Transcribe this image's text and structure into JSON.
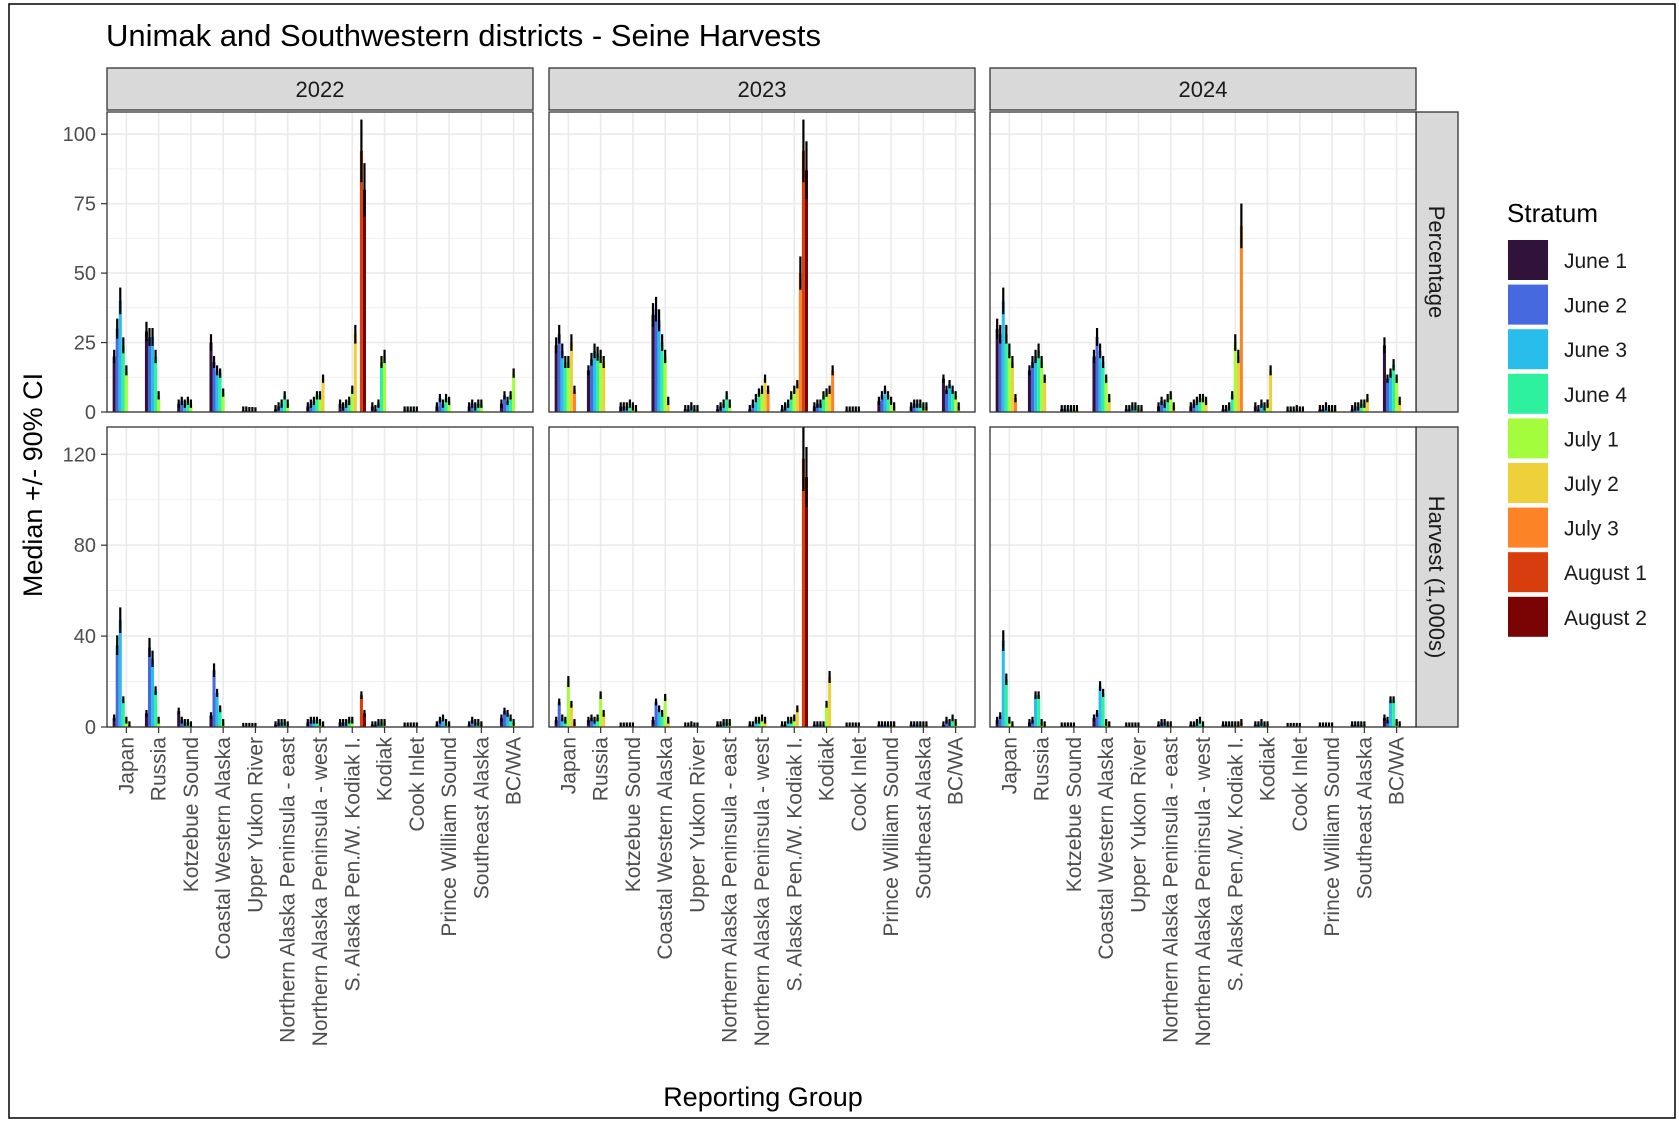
{
  "chart_data": {
    "type": "bar",
    "title": "Unimak and Southwestern districts - Seine Harvests",
    "xlabel": "Reporting Group",
    "ylabel": "Median +/- 90% CI",
    "facet_columns": [
      "2022",
      "2023",
      "2024"
    ],
    "facet_rows": [
      {
        "label": "Percentage",
        "ylim": [
          0,
          108
        ],
        "yticks": [
          0,
          25,
          50,
          75,
          100
        ]
      },
      {
        "label": "Harvest (1,000s)",
        "ylim": [
          0,
          132
        ],
        "yticks": [
          0,
          40,
          80,
          120
        ]
      }
    ],
    "categories": [
      "Japan",
      "Russia",
      "Kotzebue Sound",
      "Coastal Western Alaska",
      "Upper Yukon River",
      "Northern Alaska Peninsula - east",
      "Northern Alaska Peninsula - west",
      "S. Alaska Pen./W. Kodiak I.",
      "Kodiak",
      "Cook Inlet",
      "Prince William Sound",
      "Southeast Alaska",
      "BC/WA"
    ],
    "legend": {
      "title": "Stratum",
      "placement": "right",
      "items": [
        {
          "name": "June 1",
          "color": "#30123B"
        },
        {
          "name": "June 2",
          "color": "#4669E0"
        },
        {
          "name": "June 3",
          "color": "#29BDEB"
        },
        {
          "name": "June 4",
          "color": "#2EF19F"
        },
        {
          "name": "July 1",
          "color": "#A3FD3C"
        },
        {
          "name": "July 2",
          "color": "#EDD03A"
        },
        {
          "name": "July 3",
          "color": "#FC8427"
        },
        {
          "name": "August 1",
          "color": "#D83D0E"
        },
        {
          "name": "August 2",
          "color": "#7A0403"
        }
      ]
    },
    "grid": true,
    "error_bars": "90% CI",
    "panels": [
      {
        "year": "2022",
        "measure": "Percentage",
        "strata": [
          "June 1",
          "June 2",
          "June 3",
          "June 4",
          "July 1",
          "July 2",
          "July 3",
          "August 1",
          "August 2"
        ],
        "values": [
          [
            20,
            30,
            40,
            24,
            15,
            0,
            0,
            0,
            0
          ],
          [
            29,
            27,
            27,
            20,
            6,
            0,
            0,
            0,
            0
          ],
          [
            3,
            4,
            3,
            4,
            3,
            0,
            0,
            0,
            0
          ],
          [
            25,
            18,
            15,
            14,
            7,
            0,
            0,
            0,
            0
          ],
          [
            0.5,
            0.5,
            0.3,
            0.3,
            0.2,
            0,
            0,
            0,
            0
          ],
          [
            1,
            2,
            3,
            6,
            3,
            0,
            0,
            0,
            0
          ],
          [
            2,
            3,
            4,
            6,
            6,
            12,
            0,
            0,
            0
          ],
          [
            3,
            2,
            3,
            4,
            8,
            28,
            0,
            94,
            80
          ],
          [
            2,
            1,
            3,
            18,
            20,
            0,
            0,
            0,
            0
          ],
          [
            0.5,
            0.5,
            0.5,
            0.5,
            0.5,
            0,
            0,
            0,
            0
          ],
          [
            2,
            5,
            3,
            5,
            4,
            0,
            0,
            0,
            0
          ],
          [
            2,
            3,
            2,
            3,
            3,
            0,
            0,
            0,
            0
          ],
          [
            3,
            6,
            4,
            6,
            14,
            0,
            0,
            0,
            0
          ]
        ]
      },
      {
        "year": "2023",
        "measure": "Percentage",
        "strata": [
          "June 1",
          "June 2",
          "June 3",
          "June 4",
          "July 1",
          "July 2",
          "July 3",
          "August 1",
          "August 2"
        ],
        "values": [
          [
            24,
            28,
            22,
            18,
            18,
            25,
            8,
            0,
            0
          ],
          [
            15,
            19,
            22,
            21,
            20,
            18,
            0,
            0,
            0
          ],
          [
            2,
            2,
            2,
            3,
            2,
            1,
            0,
            0,
            0
          ],
          [
            35,
            37,
            33,
            25,
            20,
            4,
            0,
            0,
            0
          ],
          [
            1,
            1,
            2,
            1,
            1,
            0,
            0,
            0,
            0
          ],
          [
            1,
            2,
            3,
            6,
            3,
            0,
            0,
            0,
            0
          ],
          [
            1,
            3,
            5,
            7,
            8,
            12,
            8,
            0,
            0
          ],
          [
            1,
            2,
            3,
            6,
            8,
            10,
            50,
            94,
            87
          ],
          [
            2,
            3,
            3,
            6,
            7,
            8,
            15,
            0,
            0
          ],
          [
            0.5,
            0.5,
            0.5,
            0.5,
            0.5,
            0,
            0,
            0,
            0
          ],
          [
            4,
            6,
            8,
            6,
            4,
            2,
            0,
            0,
            0
          ],
          [
            2,
            3,
            3,
            3,
            2,
            2,
            0,
            0,
            0
          ],
          [
            12,
            8,
            10,
            8,
            6,
            2,
            0,
            0,
            0
          ]
        ]
      },
      {
        "year": "2024",
        "measure": "Percentage",
        "strata": [
          "June 1",
          "June 2",
          "June 3",
          "June 4",
          "July 1",
          "July 2",
          "July 3",
          "August 1",
          "August 2"
        ],
        "values": [
          [
            30,
            28,
            40,
            28,
            22,
            18,
            5,
            0,
            0
          ],
          [
            15,
            18,
            20,
            22,
            18,
            12,
            0,
            0,
            0
          ],
          [
            1,
            1,
            1,
            1,
            1,
            1,
            0,
            0,
            0
          ],
          [
            20,
            27,
            22,
            18,
            12,
            5,
            0,
            0,
            0
          ],
          [
            1,
            1,
            2,
            2,
            1,
            1,
            0,
            0,
            0
          ],
          [
            2,
            4,
            3,
            5,
            6,
            2,
            0,
            0,
            0
          ],
          [
            2,
            3,
            4,
            5,
            5,
            4,
            0,
            0,
            0
          ],
          [
            1,
            1,
            2,
            6,
            25,
            20,
            67,
            0,
            0
          ],
          [
            2,
            1,
            3,
            2,
            3,
            15,
            0,
            0,
            0
          ],
          [
            0.5,
            0.5,
            0.5,
            1,
            0.5,
            0.5,
            0,
            0,
            0
          ],
          [
            1,
            1,
            2,
            1,
            1,
            1,
            0,
            0,
            0
          ],
          [
            1,
            2,
            2,
            3,
            3,
            5,
            0,
            0,
            0
          ],
          [
            24,
            12,
            14,
            17,
            12,
            4,
            0,
            0,
            0
          ]
        ]
      },
      {
        "year": "2022",
        "measure": "Harvest (1,000s)",
        "strata": [
          "June 1",
          "June 2",
          "June 3",
          "June 4",
          "July 1",
          "July 2",
          "July 3",
          "August 1",
          "August 2"
        ],
        "values": [
          [
            4,
            36,
            47,
            12,
            3,
            1,
            0,
            0,
            0
          ],
          [
            6,
            35,
            30,
            16,
            3,
            0,
            0,
            0,
            0
          ],
          [
            7,
            3,
            2,
            2,
            1,
            0,
            0,
            0,
            0
          ],
          [
            5,
            25,
            15,
            8,
            2,
            0,
            0,
            0,
            0
          ],
          [
            0.3,
            0.3,
            0.3,
            0.3,
            0.3,
            0,
            0,
            0,
            0
          ],
          [
            1,
            2,
            2,
            2,
            1,
            0,
            0,
            0,
            0
          ],
          [
            2,
            3,
            3,
            3,
            2,
            1,
            0,
            0,
            0
          ],
          [
            2,
            2,
            2,
            3,
            3,
            0,
            0,
            14,
            6
          ],
          [
            1,
            1,
            2,
            2,
            2,
            0,
            0,
            0,
            0
          ],
          [
            0.5,
            0.5,
            0.5,
            0.5,
            0.5,
            0,
            0,
            0,
            0
          ],
          [
            1,
            3,
            4,
            2,
            1,
            0,
            0,
            0,
            0
          ],
          [
            1,
            3,
            2,
            2,
            1,
            0,
            0,
            0,
            0
          ],
          [
            4,
            7,
            6,
            4,
            2,
            0,
            0,
            0,
            0
          ]
        ]
      },
      {
        "year": "2023",
        "measure": "Harvest (1,000s)",
        "strata": [
          "June 1",
          "June 2",
          "June 3",
          "June 4",
          "July 1",
          "July 2",
          "July 3",
          "August 1",
          "August 2"
        ],
        "values": [
          [
            3,
            11,
            4,
            3,
            20,
            10,
            2,
            0,
            0
          ],
          [
            3,
            4,
            3,
            4,
            14,
            6,
            0,
            0,
            0
          ],
          [
            0.5,
            0.5,
            0.5,
            0.5,
            0.5,
            0,
            0,
            0,
            0
          ],
          [
            3,
            11,
            8,
            6,
            13,
            3,
            0,
            0,
            0
          ],
          [
            0.5,
            0.5,
            1,
            0.5,
            0.5,
            0,
            0,
            0,
            0
          ],
          [
            1,
            1,
            2,
            2,
            2,
            0,
            0,
            0,
            0
          ],
          [
            1,
            1,
            3,
            3,
            4,
            3,
            0,
            0,
            0
          ],
          [
            1,
            1,
            3,
            3,
            4,
            8,
            0,
            118,
            110
          ],
          [
            1,
            1,
            1,
            1,
            10,
            22,
            0,
            0,
            0
          ],
          [
            0.5,
            0.5,
            0.5,
            0.5,
            0.5,
            0,
            0,
            0,
            0
          ],
          [
            1,
            1,
            1,
            1,
            1,
            1,
            0,
            0,
            0
          ],
          [
            1,
            1,
            1,
            1,
            1,
            1,
            0,
            0,
            0
          ],
          [
            1,
            3,
            2,
            4,
            2,
            0,
            0,
            0,
            0
          ]
        ]
      },
      {
        "year": "2024",
        "measure": "Harvest (1,000s)",
        "strata": [
          "June 1",
          "June 2",
          "June 3",
          "June 4",
          "July 1",
          "July 2",
          "July 3",
          "August 1",
          "August 2"
        ],
        "values": [
          [
            3,
            5,
            38,
            21,
            3,
            1,
            0,
            0,
            0
          ],
          [
            2,
            3,
            14,
            14,
            2,
            1,
            0,
            0,
            0
          ],
          [
            0.5,
            0.5,
            0.5,
            0.5,
            0.5,
            0,
            0,
            0,
            0
          ],
          [
            4,
            6,
            18,
            15,
            2,
            1,
            0,
            0,
            0
          ],
          [
            0.5,
            0.5,
            0.5,
            0.5,
            0.5,
            0,
            0,
            0,
            0
          ],
          [
            1,
            2,
            2,
            1,
            1,
            0,
            0,
            0,
            0
          ],
          [
            1,
            1,
            2,
            3,
            1,
            0,
            0,
            0,
            0
          ],
          [
            1,
            1,
            1,
            1,
            1,
            1,
            2,
            0,
            0
          ],
          [
            1,
            1,
            2,
            1,
            1,
            0,
            0,
            0,
            0
          ],
          [
            0.3,
            0.3,
            0.3,
            0.3,
            0.3,
            0,
            0,
            0,
            0
          ],
          [
            0.5,
            0.5,
            0.5,
            0.5,
            0.5,
            0,
            0,
            0,
            0
          ],
          [
            1,
            1,
            1,
            1,
            1,
            0,
            0,
            0,
            0
          ],
          [
            4,
            3,
            12,
            12,
            2,
            1,
            0,
            0,
            0
          ]
        ]
      }
    ]
  }
}
